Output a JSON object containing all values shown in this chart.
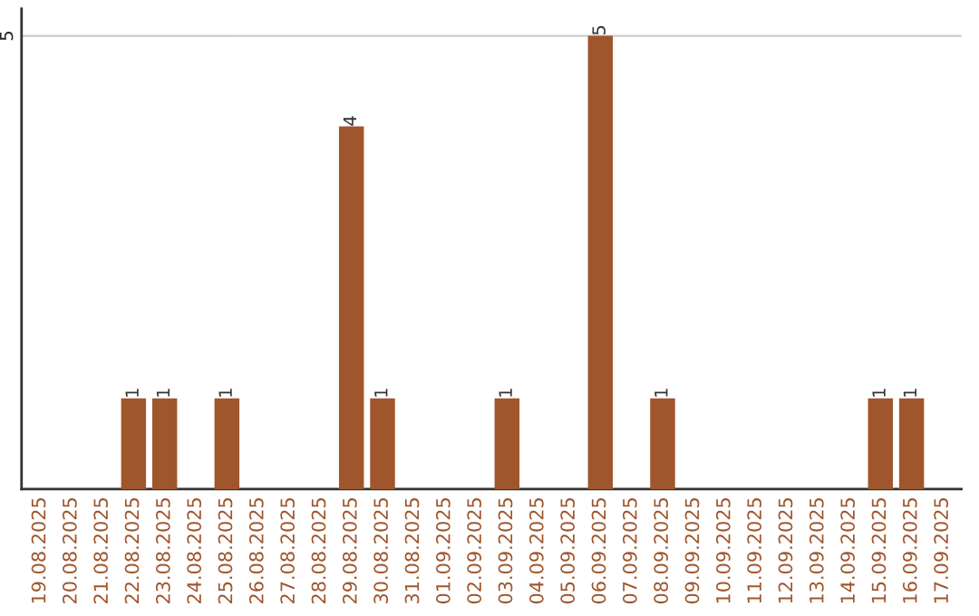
{
  "chart_data": {
    "type": "bar",
    "categories": [
      "19.08.2025",
      "20.08.2025",
      "21.08.2025",
      "22.08.2025",
      "23.08.2025",
      "24.08.2025",
      "25.08.2025",
      "26.08.2025",
      "27.08.2025",
      "28.08.2025",
      "29.08.2025",
      "30.08.2025",
      "31.08.2025",
      "01.09.2025",
      "02.09.2025",
      "03.09.2025",
      "04.09.2025",
      "05.09.2025",
      "06.09.2025",
      "07.09.2025",
      "08.09.2025",
      "09.09.2025",
      "10.09.2025",
      "11.09.2025",
      "12.09.2025",
      "13.09.2025",
      "14.09.2025",
      "15.09.2025",
      "16.09.2025",
      "17.09.2025"
    ],
    "values": [
      0,
      0,
      0,
      1,
      1,
      0,
      1,
      0,
      0,
      0,
      4,
      1,
      0,
      0,
      0,
      1,
      0,
      0,
      5,
      0,
      1,
      0,
      0,
      0,
      0,
      0,
      0,
      1,
      1,
      0
    ],
    "value_labels": [
      null,
      null,
      null,
      "1",
      "1",
      null,
      "1",
      null,
      null,
      null,
      "4",
      "1",
      null,
      null,
      null,
      "1",
      null,
      null,
      "5",
      null,
      "1",
      null,
      null,
      null,
      null,
      null,
      null,
      "1",
      "1",
      null
    ],
    "color": "#a0562c",
    "ylim": [
      0,
      5.3
    ],
    "yticks": [
      5
    ],
    "grid": "y"
  }
}
